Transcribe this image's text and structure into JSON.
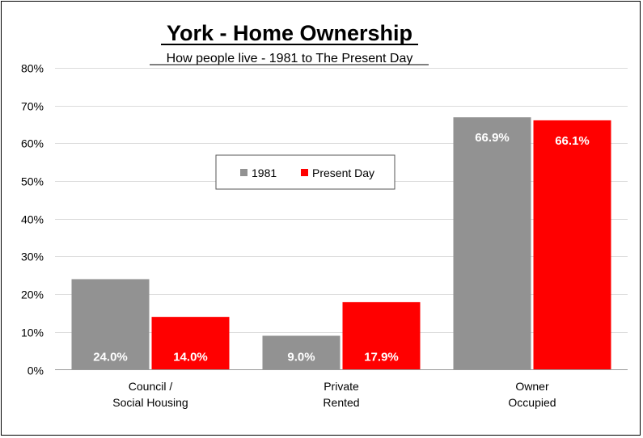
{
  "chart_data": {
    "type": "bar",
    "title": "York - Home Ownership",
    "subtitle": "How people live - 1981 to The Present Day",
    "categories": [
      [
        "Council /",
        "Social Housing"
      ],
      [
        "Private",
        "Rented"
      ],
      [
        "Owner",
        "Occupied"
      ]
    ],
    "series": [
      {
        "name": "1981",
        "color": "#929292",
        "values": [
          24.0,
          9.0,
          66.9
        ],
        "labels": [
          "24.0%",
          "9.0%",
          "66.9%"
        ]
      },
      {
        "name": "Present Day",
        "color": "#ff0000",
        "values": [
          14.0,
          17.9,
          66.1
        ],
        "labels": [
          "14.0%",
          "17.9%",
          "66.1%"
        ]
      }
    ],
    "ylim": [
      0,
      80
    ],
    "yticks": [
      0,
      10,
      20,
      30,
      40,
      50,
      60,
      70,
      80
    ],
    "ytick_labels": [
      "0%",
      "10%",
      "20%",
      "30%",
      "40%",
      "50%",
      "60%",
      "70%",
      "80%"
    ],
    "grid": true,
    "legend_position": "center",
    "xlabel": "",
    "ylabel": ""
  }
}
